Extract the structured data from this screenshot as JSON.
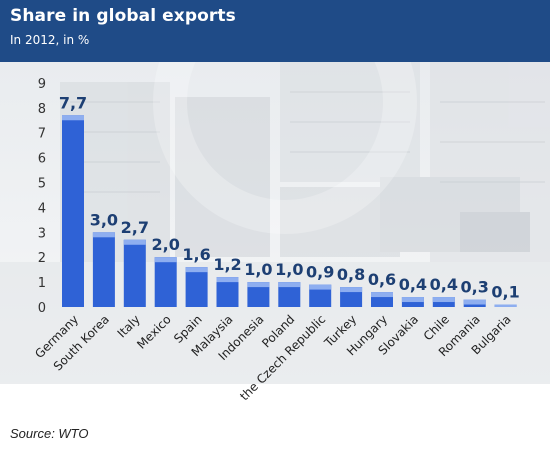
{
  "header": {
    "title": "Share in global exports",
    "subtitle": "In 2012, in %"
  },
  "footer": {
    "source": "Source: WTO"
  },
  "colors": {
    "header_bg": "#1f4b87",
    "bar": "#2f62d6",
    "bar_top": "#8eaef0",
    "label": "#1d3f73"
  },
  "chart_data": {
    "type": "bar",
    "title": "Share in global exports",
    "subtitle": "In 2012, in %",
    "categories": [
      "Germany",
      "South Korea",
      "Italy",
      "Mexico",
      "Spain",
      "Malaysia",
      "Indonesia",
      "Poland",
      "the Czech Republic",
      "Turkey",
      "Hungary",
      "Slovakia",
      "Chile",
      "Romania",
      "Bulgaria"
    ],
    "values": [
      7.7,
      3.0,
      2.7,
      2.0,
      1.6,
      1.2,
      1.0,
      1.0,
      0.9,
      0.8,
      0.6,
      0.4,
      0.4,
      0.3,
      0.1
    ],
    "data_labels": [
      "7,7",
      "3,0",
      "2,7",
      "2,0",
      "1,6",
      "1,2",
      "1,0",
      "1,0",
      "0,9",
      "0,8",
      "0,6",
      "0,4",
      "0,4",
      "0,3",
      "0,1"
    ],
    "y_ticks": [
      "0",
      "1",
      "2",
      "3",
      "4",
      "5",
      "6",
      "7",
      "8",
      "9"
    ],
    "ylim": [
      0,
      9
    ],
    "xlabel": "",
    "ylabel": "",
    "grid": false,
    "legend": "none"
  }
}
